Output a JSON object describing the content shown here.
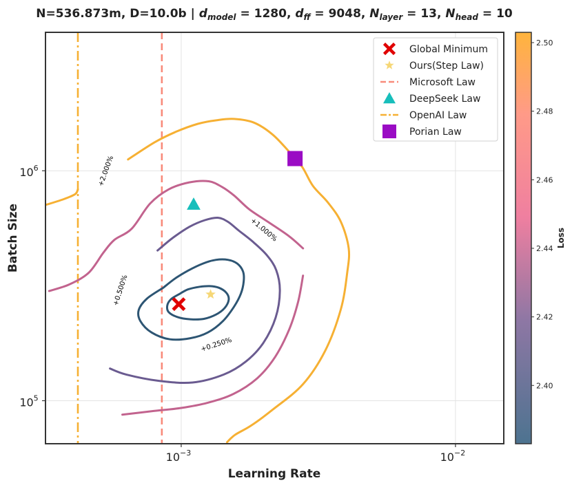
{
  "chart_data": {
    "type": "contour",
    "title": "N=536.873m, D=10.0b | d_model = 1280, d_ff = 9048, N_layer = 13, N_head = 10",
    "title_parts": {
      "lead": "N=536.873m, D=10.0b | ",
      "dmodel": "d",
      "dmodel_sub": "model",
      "dmodel_val": " = 1280, ",
      "dff": "d",
      "dff_sub": "ff",
      "dff_val": " = 9048, ",
      "nlayer": "N",
      "nlayer_sub": "layer",
      "nlayer_val": " = 13, ",
      "nhead": "N",
      "nhead_sub": "head",
      "nhead_val": " = 10"
    },
    "xlabel": "Learning Rate",
    "ylabel": "Batch Size",
    "xscale": "log",
    "yscale": "log",
    "xlim": [
      0.00032,
      0.015
    ],
    "ylim": [
      65000,
      4000000
    ],
    "x_ticks": [
      {
        "value": 0.001,
        "base": "10",
        "exp": "−3"
      },
      {
        "value": 0.01,
        "base": "10",
        "exp": "−2"
      }
    ],
    "y_ticks": [
      {
        "value": 100000,
        "base": "10",
        "exp": "5"
      },
      {
        "value": 1000000,
        "base": "10",
        "exp": "6"
      }
    ],
    "grid": true,
    "colorbar": {
      "label": "Loss",
      "min": 2.383,
      "max": 2.503,
      "ticks": [
        "2.40",
        "2.42",
        "2.44",
        "2.46",
        "2.48",
        "2.50"
      ],
      "tick_values": [
        2.4,
        2.42,
        2.44,
        2.46,
        2.48,
        2.5
      ],
      "color_low": "#4f7390",
      "color_mid": "#f07f9d",
      "color_high": "#ffb142"
    },
    "contours": [
      {
        "label": "+0.250%",
        "color": "#2d5573",
        "points": [
          [
            0.00098,
            0.29
          ],
          [
            0.00106,
            0.305
          ],
          [
            0.00117,
            0.313
          ],
          [
            0.00127,
            0.315
          ],
          [
            0.00137,
            0.31
          ],
          [
            0.00146,
            0.295
          ],
          [
            0.00149,
            0.275
          ],
          [
            0.00144,
            0.253
          ],
          [
            0.00134,
            0.237
          ],
          [
            0.00121,
            0.227
          ],
          [
            0.00108,
            0.226
          ],
          [
            0.00097,
            0.231
          ],
          [
            0.0009,
            0.243
          ],
          [
            0.00089,
            0.26
          ],
          [
            0.00092,
            0.277
          ],
          [
            0.00098,
            0.29
          ]
        ]
      },
      {
        "label": "",
        "color": "#2d5573",
        "points": [
          [
            0.00086,
            0.31
          ],
          [
            0.00095,
            0.34
          ],
          [
            0.00106,
            0.368
          ],
          [
            0.0012,
            0.395
          ],
          [
            0.00134,
            0.41
          ],
          [
            0.00148,
            0.41
          ],
          [
            0.0016,
            0.395
          ],
          [
            0.00168,
            0.365
          ],
          [
            0.00169,
            0.33
          ],
          [
            0.00165,
            0.292
          ],
          [
            0.00156,
            0.257
          ],
          [
            0.00142,
            0.222
          ],
          [
            0.00125,
            0.198
          ],
          [
            0.00108,
            0.187
          ],
          [
            0.00091,
            0.185
          ],
          [
            0.00078,
            0.198
          ],
          [
            0.00071,
            0.222
          ],
          [
            0.0007,
            0.248
          ],
          [
            0.00075,
            0.278
          ],
          [
            0.00086,
            0.31
          ]
        ]
      },
      {
        "label": "+0.500%",
        "color": "#6a5b90",
        "points": [
          [
            0.00082,
            0.45
          ],
          [
            0.00093,
            0.51
          ],
          [
            0.00107,
            0.57
          ],
          [
            0.00122,
            0.61
          ],
          [
            0.00136,
            0.625
          ],
          [
            0.00148,
            0.6
          ],
          [
            0.00162,
            0.55
          ],
          [
            0.00183,
            0.49
          ],
          [
            0.00205,
            0.43
          ],
          [
            0.00222,
            0.37
          ],
          [
            0.00229,
            0.3
          ],
          [
            0.00221,
            0.23
          ],
          [
            0.00199,
            0.178
          ],
          [
            0.00172,
            0.148
          ],
          [
            0.00143,
            0.13
          ],
          [
            0.0011,
            0.12
          ],
          [
            0.00083,
            0.122
          ],
          [
            0.00063,
            0.13
          ],
          [
            0.00055,
            0.138
          ]
        ]
      },
      {
        "label": "+1.000%",
        "color": "#c2638e",
        "points": [
          [
            0.00033,
            0.3
          ],
          [
            0.00039,
            0.32
          ],
          [
            0.00046,
            0.36
          ],
          [
            0.00052,
            0.44
          ],
          [
            0.00057,
            0.5
          ],
          [
            0.00066,
            0.56
          ],
          [
            0.00077,
            0.72
          ],
          [
            0.0009,
            0.83
          ],
          [
            0.00107,
            0.89
          ],
          [
            0.00126,
            0.9
          ],
          [
            0.00141,
            0.85
          ],
          [
            0.00156,
            0.78
          ],
          [
            0.00177,
            0.68
          ],
          [
            0.00207,
            0.6
          ],
          [
            0.00247,
            0.52
          ],
          [
            0.00278,
            0.46
          ]
        ]
      },
      {
        "label": "",
        "color": "#c2638e",
        "points": [
          [
            0.00278,
            0.35
          ],
          [
            0.00267,
            0.27
          ],
          [
            0.00248,
            0.205
          ],
          [
            0.0022,
            0.155
          ],
          [
            0.00189,
            0.125
          ],
          [
            0.00155,
            0.107
          ],
          [
            0.00125,
            0.098
          ],
          [
            0.001,
            0.093
          ],
          [
            0.00078,
            0.09
          ],
          [
            0.00061,
            0.087
          ]
        ]
      },
      {
        "label": "+2.000%",
        "color": "#f6b033",
        "points": [
          [
            0.00064,
            1.12
          ],
          [
            0.0008,
            1.33
          ],
          [
            0.00096,
            1.48
          ],
          [
            0.00115,
            1.6
          ],
          [
            0.00135,
            1.66
          ],
          [
            0.00156,
            1.68
          ],
          [
            0.00184,
            1.62
          ],
          [
            0.00215,
            1.44
          ],
          [
            0.00246,
            1.22
          ],
          [
            0.00276,
            1.04
          ],
          [
            0.00302,
            0.86
          ],
          [
            0.00342,
            0.73
          ],
          [
            0.00382,
            0.6
          ],
          [
            0.00408,
            0.46
          ],
          [
            0.00403,
            0.36
          ],
          [
            0.00382,
            0.25
          ],
          [
            0.00335,
            0.165
          ],
          [
            0.00278,
            0.118
          ],
          [
            0.00217,
            0.092
          ],
          [
            0.0018,
            0.078
          ],
          [
            0.00157,
            0.071
          ],
          [
            0.00147,
            0.066
          ]
        ]
      },
      {
        "label": "",
        "color": "#f6b033",
        "points": [
          [
            0.00032,
            0.71
          ],
          [
            0.00037,
            0.75
          ],
          [
            0.00041,
            0.79
          ],
          [
            0.00042,
            0.83
          ]
        ]
      }
    ],
    "contour_labels": [
      {
        "text": "+0.250%",
        "x": 0.00135,
        "y": 0.172,
        "angle": -18
      },
      {
        "text": "+0.500%",
        "x": 0.00061,
        "y": 0.3,
        "angle": -72
      },
      {
        "text": "+1.000%",
        "x": 0.00198,
        "y": 0.545,
        "angle": 40
      },
      {
        "text": "+2.000%",
        "x": 0.00054,
        "y": 0.99,
        "angle": -70
      }
    ],
    "vertical_lines": [
      {
        "name": "Microsoft Law",
        "x": 0.00085,
        "color": "#f88a7a",
        "style": "dashed"
      },
      {
        "name": "OpenAI Law",
        "x": 0.00042,
        "color": "#f6b033",
        "style": "dashdot"
      }
    ],
    "markers": [
      {
        "name": "Global Minimum",
        "x": 0.00098,
        "y": 0.263,
        "shape": "x",
        "color": "#e00000"
      },
      {
        "name": "Ours(Step Law)",
        "x": 0.00128,
        "y": 0.29,
        "shape": "star",
        "color": "#f6d776"
      },
      {
        "name": "DeepSeek Law",
        "x": 0.00111,
        "y": 0.715,
        "shape": "triangle",
        "color": "#17bebb"
      },
      {
        "name": "Porian Law",
        "x": 0.0026,
        "y": 1.13,
        "shape": "square",
        "color": "#9a0cc4"
      }
    ],
    "y_marker_unit": 1000000,
    "legend": {
      "position": "top-right",
      "entries": [
        {
          "label": "Global Minimum",
          "shape": "x",
          "color": "#e00000"
        },
        {
          "label": "Ours(Step Law)",
          "shape": "star",
          "color": "#f6d776"
        },
        {
          "label": "Microsoft Law",
          "shape": "dashed",
          "color": "#f88a7a"
        },
        {
          "label": "DeepSeek Law",
          "shape": "triangle",
          "color": "#17bebb"
        },
        {
          "label": "OpenAI Law",
          "shape": "dashdot",
          "color": "#f6b033"
        },
        {
          "label": "Porian Law",
          "shape": "square",
          "color": "#9a0cc4"
        }
      ]
    }
  }
}
